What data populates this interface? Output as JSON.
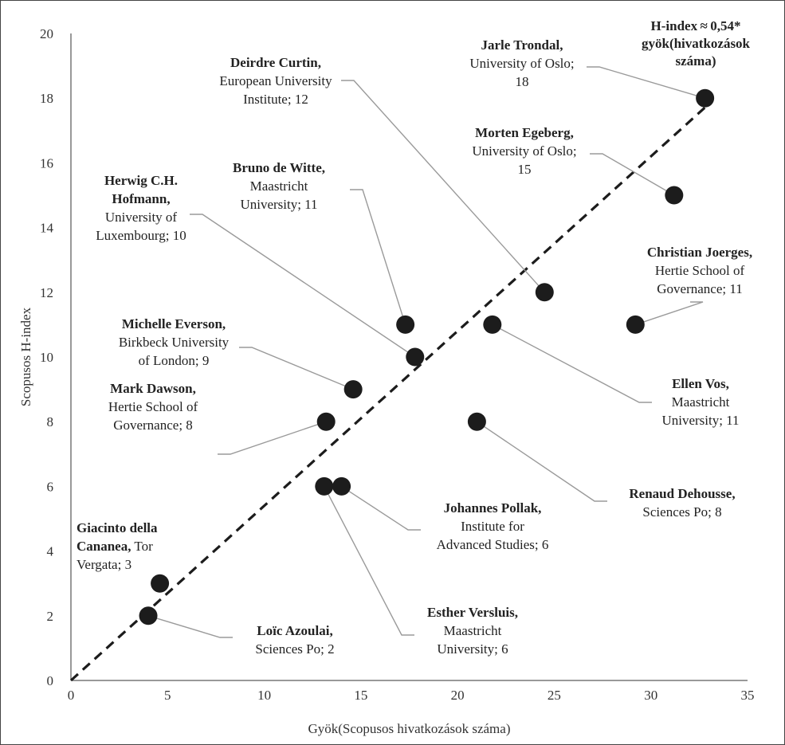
{
  "chart_data": {
    "type": "scatter",
    "xlabel": "Gyök(Scopusos hivatkozások száma)",
    "ylabel": "Scopusos H-index",
    "xlim": [
      0,
      35
    ],
    "ylim": [
      0,
      20
    ],
    "xticks": [
      "0",
      "5",
      "10",
      "15",
      "20",
      "25",
      "30",
      "35"
    ],
    "yticks": [
      "0",
      "2",
      "4",
      "6",
      "8",
      "10",
      "12",
      "14",
      "16",
      "18",
      "20"
    ],
    "grid": false,
    "trendline": {
      "label": [
        "H-index ≈ 0,54*",
        "gyök(hivatkozások",
        "száma)"
      ],
      "slope": 0.54,
      "x_range": [
        0,
        32.8
      ]
    },
    "points": [
      {
        "x": 32.8,
        "y": 18,
        "name": "Jarle Trondal,",
        "detail": [
          "University of Oslo;",
          "18"
        ]
      },
      {
        "x": 24.5,
        "y": 12,
        "name": "Deirdre Curtin,",
        "detail": [
          "European University",
          "Institute; 12"
        ]
      },
      {
        "x": 31.2,
        "y": 15,
        "name": "Morten Egeberg,",
        "detail": [
          "University of Oslo;",
          "15"
        ]
      },
      {
        "x": 17.3,
        "y": 11,
        "name": "Bruno de Witte,",
        "detail": [
          "Maastricht",
          "University; 11"
        ]
      },
      {
        "x": 17.8,
        "y": 10,
        "name": "Herwig C.H. Hofmann,",
        "detail": [
          "University of",
          "Luxembourg; 10"
        ]
      },
      {
        "x": 29.2,
        "y": 11,
        "name": "Christian Joerges,",
        "detail": [
          "Hertie School of",
          "Governance; 11"
        ]
      },
      {
        "x": 14.6,
        "y": 9,
        "name": "Michelle Everson,",
        "detail": [
          "Birkbeck University",
          "of London; 9"
        ]
      },
      {
        "x": 21.8,
        "y": 11,
        "name": "Ellen Vos,",
        "detail": [
          "Maastricht",
          "University; 11"
        ]
      },
      {
        "x": 13.2,
        "y": 8,
        "name": "Mark Dawson,",
        "detail": [
          "Hertie School of",
          "Governance; 8"
        ]
      },
      {
        "x": 21.0,
        "y": 8,
        "name": "Renaud Dehousse,",
        "detail": [
          "Sciences Po; 8"
        ]
      },
      {
        "x": 14.0,
        "y": 6,
        "name": "Johannes Pollak,",
        "detail": [
          "Institute for",
          "Advanced Studies; 6"
        ]
      },
      {
        "x": 13.1,
        "y": 6,
        "name": "Esther Versluis,",
        "detail": [
          "Maastricht",
          "University; 6"
        ]
      },
      {
        "x": 4.6,
        "y": 3,
        "name": "Giacinto della Cananea,",
        "detail": [
          "Tor Vergata; 3"
        ]
      },
      {
        "x": 4.0,
        "y": 2,
        "name": "Loïc Azoulai,",
        "detail": [
          "Sciences Po; 2"
        ]
      }
    ]
  }
}
